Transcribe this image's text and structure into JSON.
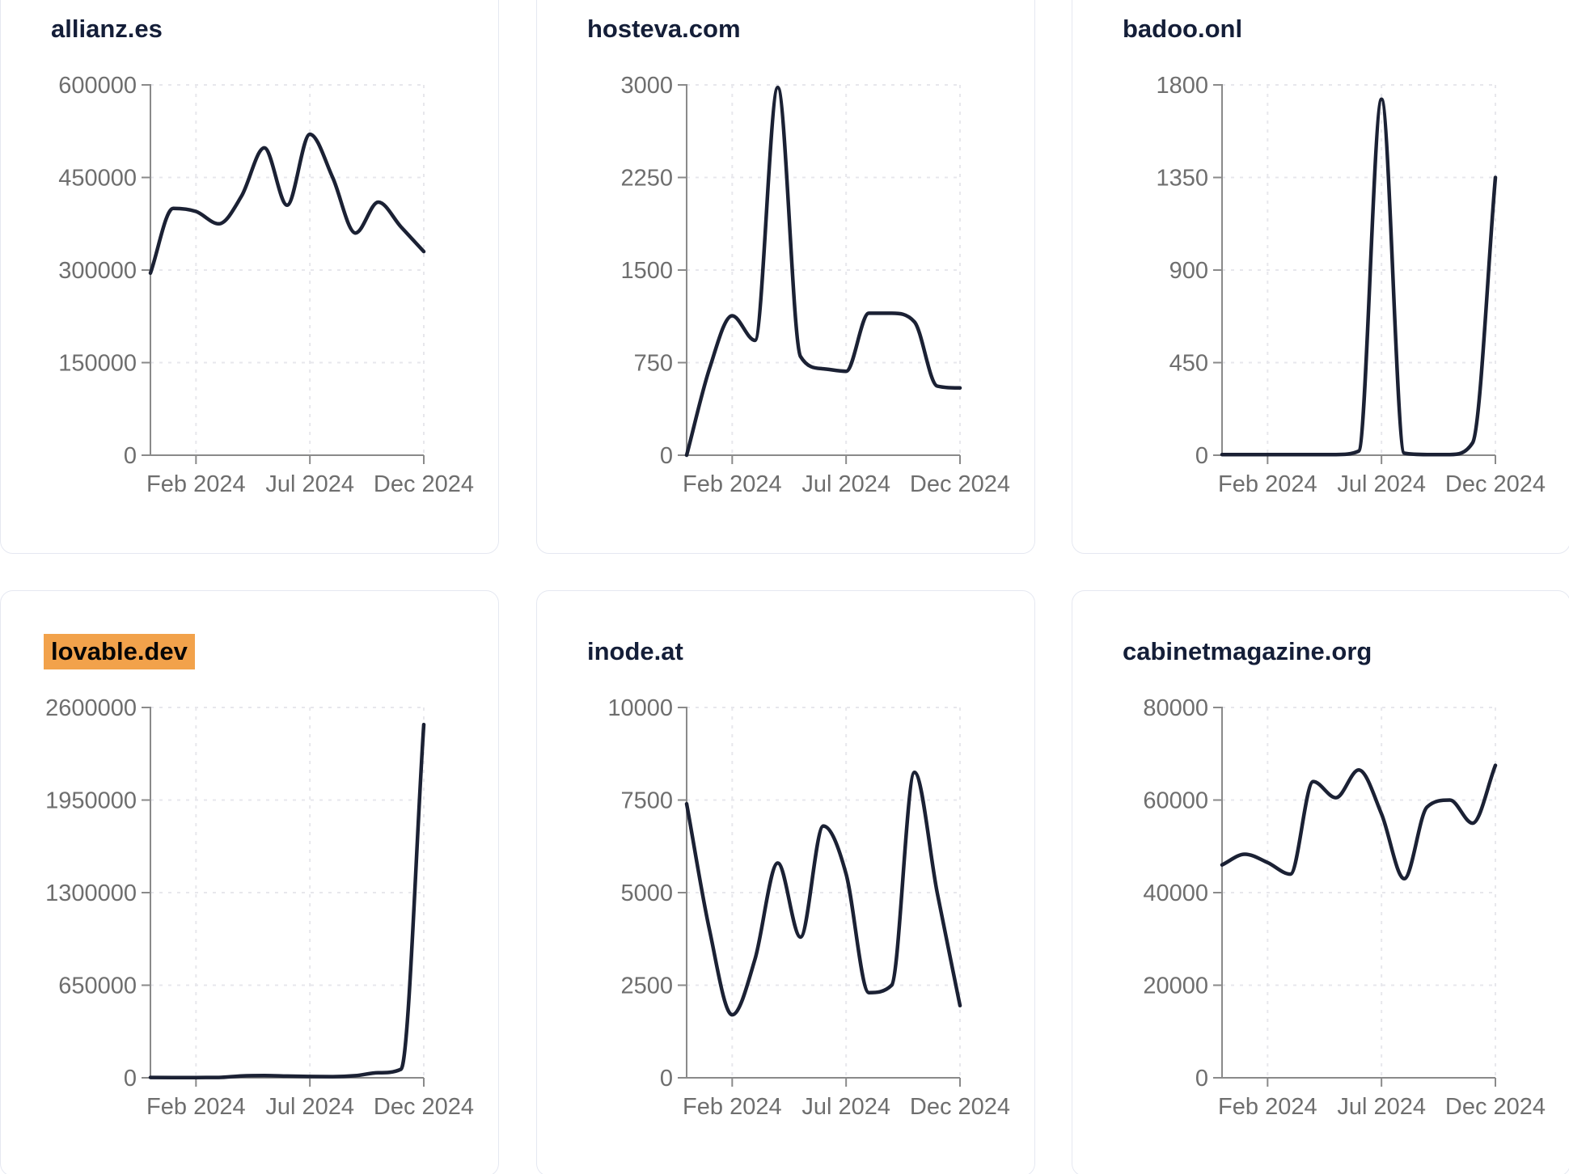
{
  "page": {
    "background": "#ffffff",
    "description": "Dashboard grid of six domain traffic sparkline charts for 2024"
  },
  "colors": {
    "line": "#1b2134",
    "title": "#141e38",
    "highlight_bg": "#f2a24b",
    "highlight_text": "#060606",
    "tick_label": "#6e6e6e",
    "axis": "#8a8a8a",
    "grid": "#e7e7ec",
    "card_border": "#e5e8f1"
  },
  "x_axis": {
    "tick_labels": [
      "Feb 2024",
      "Jul 2024",
      "Dec 2024"
    ],
    "tick_indices": [
      2,
      7,
      12
    ]
  },
  "chart_data": [
    {
      "type": "line",
      "title": "allianz.es",
      "highlighted": false,
      "x": [
        "Dec 2023",
        "Jan 2024",
        "Feb 2024",
        "Mar 2024",
        "Apr 2024",
        "May 2024",
        "Jun 2024",
        "Jul 2024",
        "Aug 2024",
        "Sep 2024",
        "Oct 2024",
        "Nov 2024",
        "Dec 2024"
      ],
      "values": [
        295000,
        400000,
        395000,
        375000,
        420000,
        498000,
        405000,
        520000,
        450000,
        360000,
        410000,
        370000,
        330000
      ],
      "xlabel": "",
      "ylabel": "",
      "ylim": [
        0,
        600000
      ],
      "y_ticks": [
        0,
        150000,
        300000,
        450000,
        600000
      ],
      "x_tick_labels": [
        "Feb 2024",
        "Jul 2024",
        "Dec 2024"
      ],
      "grid": true,
      "legend": false
    },
    {
      "type": "line",
      "title": "hosteva.com",
      "highlighted": false,
      "x": [
        "Dec 2023",
        "Jan 2024",
        "Feb 2024",
        "Mar 2024",
        "Apr 2024",
        "May 2024",
        "Jun 2024",
        "Jul 2024",
        "Aug 2024",
        "Sep 2024",
        "Oct 2024",
        "Nov 2024",
        "Dec 2024"
      ],
      "values": [
        0,
        700,
        1130,
        930,
        2980,
        800,
        700,
        680,
        1150,
        1150,
        1080,
        560,
        545
      ],
      "xlabel": "",
      "ylabel": "",
      "ylim": [
        0,
        3000
      ],
      "y_ticks": [
        0,
        750,
        1500,
        2250,
        3000
      ],
      "x_tick_labels": [
        "Feb 2024",
        "Jul 2024",
        "Dec 2024"
      ],
      "grid": true,
      "legend": false
    },
    {
      "type": "line",
      "title": "badoo.onl",
      "highlighted": false,
      "x": [
        "Dec 2023",
        "Jan 2024",
        "Feb 2024",
        "Mar 2024",
        "Apr 2024",
        "May 2024",
        "Jun 2024",
        "Jul 2024",
        "Aug 2024",
        "Sep 2024",
        "Oct 2024",
        "Nov 2024",
        "Dec 2024"
      ],
      "values": [
        3,
        3,
        3,
        3,
        3,
        3,
        20,
        1730,
        10,
        3,
        3,
        60,
        1350
      ],
      "xlabel": "",
      "ylabel": "",
      "ylim": [
        0,
        1800
      ],
      "y_ticks": [
        0,
        450,
        900,
        1350,
        1800
      ],
      "x_tick_labels": [
        "Feb 2024",
        "Jul 2024",
        "Dec 2024"
      ],
      "grid": true,
      "legend": false
    },
    {
      "type": "line",
      "title": "lovable.dev",
      "highlighted": true,
      "x": [
        "Dec 2023",
        "Jan 2024",
        "Feb 2024",
        "Mar 2024",
        "Apr 2024",
        "May 2024",
        "Jun 2024",
        "Jul 2024",
        "Aug 2024",
        "Sep 2024",
        "Oct 2024",
        "Nov 2024",
        "Dec 2024"
      ],
      "values": [
        2000,
        1800,
        1500,
        2500,
        13000,
        16000,
        12000,
        9000,
        8000,
        15000,
        35000,
        60000,
        2480000
      ],
      "xlabel": "",
      "ylabel": "",
      "ylim": [
        0,
        2600000
      ],
      "y_ticks": [
        0,
        650000,
        1300000,
        1950000,
        2600000
      ],
      "x_tick_labels": [
        "Feb 2024",
        "Jul 2024",
        "Dec 2024"
      ],
      "grid": true,
      "legend": false
    },
    {
      "type": "line",
      "title": "inode.at",
      "highlighted": false,
      "x": [
        "Dec 2023",
        "Jan 2024",
        "Feb 2024",
        "Mar 2024",
        "Apr 2024",
        "May 2024",
        "Jun 2024",
        "Jul 2024",
        "Aug 2024",
        "Sep 2024",
        "Oct 2024",
        "Nov 2024",
        "Dec 2024"
      ],
      "values": [
        7400,
        4000,
        1700,
        3200,
        5800,
        3800,
        6800,
        5500,
        2300,
        2500,
        8250,
        5000,
        1950
      ],
      "xlabel": "",
      "ylabel": "",
      "ylim": [
        0,
        10000
      ],
      "y_ticks": [
        0,
        2500,
        5000,
        7500,
        10000
      ],
      "x_tick_labels": [
        "Feb 2024",
        "Jul 2024",
        "Dec 2024"
      ],
      "grid": true,
      "legend": false
    },
    {
      "type": "line",
      "title": "cabinetmagazine.org",
      "highlighted": false,
      "x": [
        "Dec 2023",
        "Jan 2024",
        "Feb 2024",
        "Mar 2024",
        "Apr 2024",
        "May 2024",
        "Jun 2024",
        "Jul 2024",
        "Aug 2024",
        "Sep 2024",
        "Oct 2024",
        "Nov 2024",
        "Dec 2024"
      ],
      "values": [
        46000,
        48300,
        46500,
        44000,
        64000,
        60500,
        66500,
        57000,
        43000,
        58500,
        60000,
        55000,
        67500
      ],
      "xlabel": "",
      "ylabel": "",
      "ylim": [
        0,
        80000
      ],
      "y_ticks": [
        0,
        20000,
        40000,
        60000,
        80000
      ],
      "x_tick_labels": [
        "Feb 2024",
        "Jul 2024",
        "Dec 2024"
      ],
      "grid": true,
      "legend": false
    }
  ]
}
